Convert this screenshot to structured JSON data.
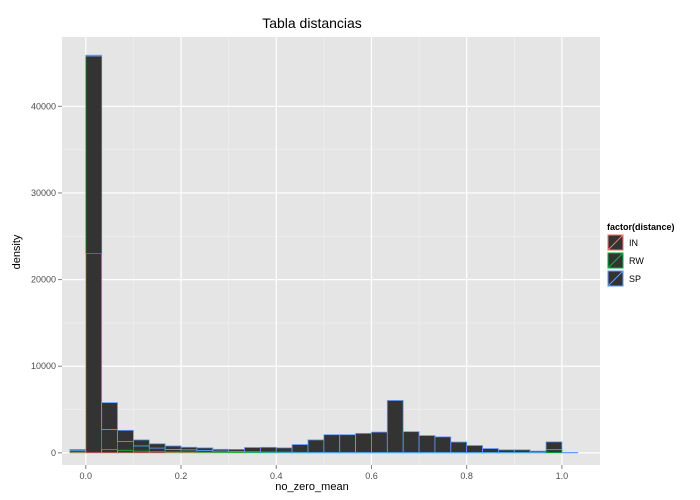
{
  "chart_data": {
    "type": "bar",
    "title": "Tabla distancias",
    "xlabel": "no_zero_mean",
    "ylabel": "density",
    "xlim": [
      -0.05,
      1.08
    ],
    "ylim": [
      -1400,
      48000
    ],
    "xticks": [
      0.0,
      0.2,
      0.4,
      0.6,
      0.8,
      1.0
    ],
    "xtick_labels": [
      "0.0",
      "0.2",
      "0.4",
      "0.6",
      "0.8",
      "1.0"
    ],
    "yticks": [
      0,
      10000,
      20000,
      30000,
      40000
    ],
    "ytick_labels": [
      "0",
      "10000",
      "20000",
      "30000",
      "40000"
    ],
    "grid": true,
    "legend": {
      "title": "factor(distance)",
      "position": "right",
      "entries": [
        {
          "label": "IN",
          "color": "#f8766d"
        },
        {
          "label": "RW",
          "color": "#00ba38"
        },
        {
          "label": "SP",
          "color": "#619cff"
        }
      ]
    },
    "bin_width": 0.0333,
    "bin_starts": [
      -0.0333,
      0.0,
      0.0333,
      0.0667,
      0.1,
      0.1333,
      0.1667,
      0.2,
      0.2333,
      0.2667,
      0.3,
      0.3333,
      0.3667,
      0.4,
      0.4333,
      0.4667,
      0.5,
      0.5333,
      0.5667,
      0.6,
      0.6333,
      0.6667,
      0.7,
      0.7333,
      0.7667,
      0.8,
      0.8333,
      0.8667,
      0.9,
      0.9333,
      0.9667,
      1.0
    ],
    "series": [
      {
        "name": "IN",
        "color": "#f8766d",
        "values": [
          100,
          23000,
          400,
          300,
          200,
          150,
          100,
          100,
          80,
          60,
          50,
          40,
          30,
          30,
          20,
          20,
          20,
          20,
          20,
          20,
          20,
          20,
          20,
          20,
          20,
          20,
          20,
          20,
          20,
          20,
          20,
          0
        ]
      },
      {
        "name": "RW",
        "color": "#00ba38",
        "values": [
          200,
          22800,
          2300,
          1000,
          600,
          400,
          300,
          250,
          200,
          150,
          100,
          80,
          60,
          50,
          40,
          30,
          30,
          30,
          30,
          30,
          30,
          30,
          30,
          30,
          30,
          30,
          30,
          30,
          30,
          30,
          350,
          0
        ]
      },
      {
        "name": "SP",
        "color": "#619cff",
        "values": [
          100,
          100,
          3100,
          1300,
          700,
          500,
          400,
          300,
          300,
          200,
          250,
          500,
          550,
          500,
          900,
          1450,
          2050,
          2050,
          2200,
          2350,
          6000,
          2400,
          1950,
          1800,
          1200,
          800,
          450,
          300,
          300,
          150,
          900,
          50
        ]
      }
    ]
  }
}
